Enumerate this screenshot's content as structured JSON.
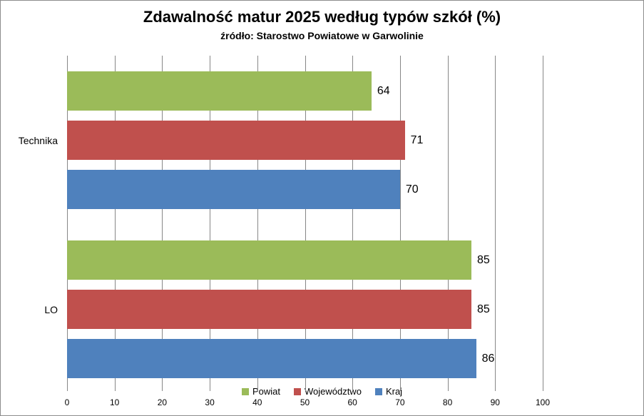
{
  "chart_data": {
    "type": "bar",
    "orientation": "horizontal",
    "title": "Zdawalność matur 2025 według typów szkół (%)",
    "subtitle": "źródło: Starostwo Powiatowe w Garwolinie",
    "categories": [
      "Technika",
      "LO"
    ],
    "series": [
      {
        "name": "Powiat",
        "color": "#9BBB59",
        "values": [
          64,
          85
        ]
      },
      {
        "name": "Województwo",
        "color": "#C0504D",
        "values": [
          71,
          85
        ]
      },
      {
        "name": "Kraj",
        "color": "#4F81BD",
        "values": [
          70,
          86
        ]
      }
    ],
    "xlim": [
      0,
      100
    ],
    "xticks": [
      0,
      10,
      20,
      30,
      40,
      50,
      60,
      70,
      80,
      90,
      100
    ],
    "grid": true,
    "gridline_color": "#878787",
    "border_color": "#8C8C8C",
    "background_color": "#FFFFFF",
    "legend_position": "bottom",
    "data_labels": true
  }
}
